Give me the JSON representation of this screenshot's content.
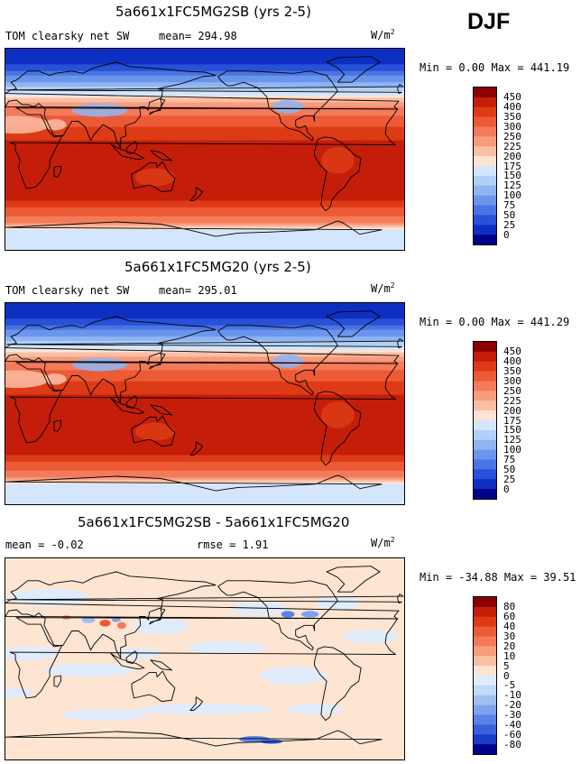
{
  "season": "DJF",
  "coast_color": "#000000",
  "panels": [
    {
      "title": "5a661x1FC5MG2SB (yrs 2-5)",
      "variable": "TOM clearsky net SW",
      "mean_label": "mean= 294.98",
      "units": "W/m",
      "units_exp": "2",
      "minmax": "Min =    0.00 Max = 441.19",
      "field": "sw"
    },
    {
      "title": "5a661x1FC5MG20 (yrs 2-5)",
      "variable": "TOM clearsky net SW",
      "mean_label": "mean= 295.01",
      "units": "W/m",
      "units_exp": "2",
      "minmax": "Min =    0.00 Max = 441.29",
      "field": "sw"
    },
    {
      "title": "5a661x1FC5MG2SB - 5a661x1FC5MG20",
      "variable": "mean =  -0.02",
      "mean_label": "rmse =   1.91",
      "units": "W/m",
      "units_exp": "2",
      "minmax": "Min = -34.88 Max =  39.51",
      "field": "diff"
    }
  ],
  "chart_data": [
    {
      "type": "heatmap",
      "title": "5a661x1FC5MG2SB (yrs 2-5)",
      "variable": "TOM clearsky net SW",
      "units": "W/m2",
      "mean": 294.98,
      "min": 0.0,
      "max": 441.19,
      "colorbar": {
        "levels": [
          450,
          400,
          350,
          300,
          250,
          225,
          200,
          175,
          150,
          125,
          100,
          75,
          50,
          25,
          0
        ],
        "colors": [
          "#8b0000",
          "#c41e0a",
          "#dd3b16",
          "#ec5a36",
          "#f47b5a",
          "#f89c7e",
          "#fbbfa6",
          "#fde3d4",
          "#d4e6fb",
          "#b1cff7",
          "#8eb4f2",
          "#6b95ec",
          "#4a74e4",
          "#2850d8",
          "#0c2fc2",
          "#00008b"
        ]
      },
      "zonal_profile_lat": [
        90,
        75,
        60,
        45,
        30,
        15,
        0,
        -15,
        -30,
        -45,
        -60,
        -75,
        -90
      ],
      "zonal_profile_value": [
        0,
        25,
        100,
        200,
        300,
        380,
        420,
        440,
        430,
        400,
        300,
        150,
        150
      ]
    },
    {
      "type": "heatmap",
      "title": "5a661x1FC5MG20 (yrs 2-5)",
      "variable": "TOM clearsky net SW",
      "units": "W/m2",
      "mean": 295.01,
      "min": 0.0,
      "max": 441.29,
      "colorbar": {
        "levels": [
          450,
          400,
          350,
          300,
          250,
          225,
          200,
          175,
          150,
          125,
          100,
          75,
          50,
          25,
          0
        ],
        "colors": [
          "#8b0000",
          "#c41e0a",
          "#dd3b16",
          "#ec5a36",
          "#f47b5a",
          "#f89c7e",
          "#fbbfa6",
          "#fde3d4",
          "#d4e6fb",
          "#b1cff7",
          "#8eb4f2",
          "#6b95ec",
          "#4a74e4",
          "#2850d8",
          "#0c2fc2",
          "#00008b"
        ]
      },
      "zonal_profile_lat": [
        90,
        75,
        60,
        45,
        30,
        15,
        0,
        -15,
        -30,
        -45,
        -60,
        -75,
        -90
      ],
      "zonal_profile_value": [
        0,
        25,
        100,
        200,
        300,
        380,
        420,
        440,
        430,
        400,
        300,
        150,
        150
      ]
    },
    {
      "type": "heatmap",
      "title": "5a661x1FC5MG2SB - 5a661x1FC5MG20",
      "units": "W/m2",
      "mean": -0.02,
      "rmse": 1.91,
      "min": -34.88,
      "max": 39.51,
      "colorbar": {
        "levels": [
          80,
          60,
          40,
          30,
          20,
          10,
          5,
          0,
          -5,
          -10,
          -20,
          -30,
          -40,
          -60,
          -80
        ],
        "colors": [
          "#8b0000",
          "#c41e0a",
          "#dd3b16",
          "#ec5a36",
          "#f47b5a",
          "#f89c7e",
          "#fbbfa6",
          "#fde5d2",
          "#e0ecfb",
          "#c3daf8",
          "#9fbff3",
          "#7ea2ee",
          "#5b82e6",
          "#3a60dc",
          "#1a3cc6",
          "#00008b"
        ]
      }
    }
  ]
}
